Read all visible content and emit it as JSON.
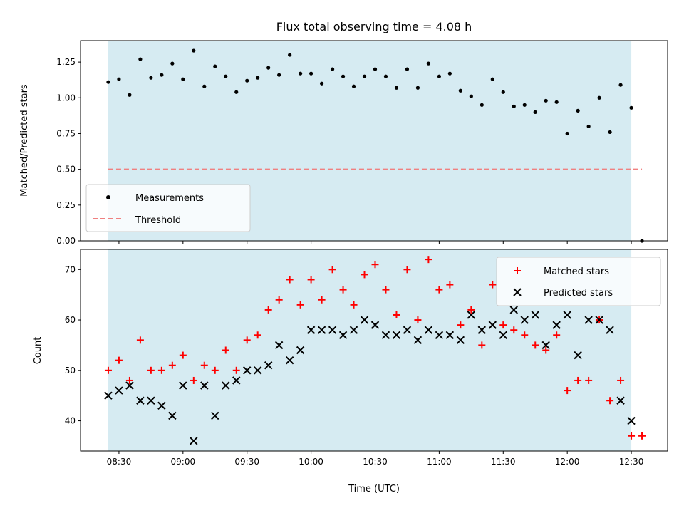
{
  "title": "Flux total observing time = 4.08 h",
  "colors": {
    "shade": "#add8e6",
    "measurement": "#000000",
    "threshold": "#f08080",
    "matched": "#ff0000",
    "predicted": "#000000"
  },
  "chart_data": [
    {
      "type": "scatter",
      "ylabel": "Matched/Predicted stars",
      "ylim": [
        0.0,
        1.4
      ],
      "yticks": [
        "0.00",
        "0.25",
        "0.50",
        "0.75",
        "1.00",
        "1.25"
      ],
      "yticks_values": [
        0.0,
        0.25,
        0.5,
        0.75,
        1.0,
        1.25
      ],
      "observing_window": [
        "08:25",
        "12:30"
      ],
      "legend": {
        "placement": "lower left",
        "entries": [
          "Measurements",
          "Threshold"
        ]
      },
      "threshold": {
        "value": 0.5,
        "x_range": [
          "08:25",
          "12:35"
        ]
      },
      "series": [
        {
          "name": "Measurements",
          "marker": "dot",
          "x": [
            "08:25",
            "08:30",
            "08:35",
            "08:40",
            "08:45",
            "08:50",
            "08:55",
            "09:00",
            "09:05",
            "09:10",
            "09:15",
            "09:20",
            "09:25",
            "09:30",
            "09:35",
            "09:40",
            "09:45",
            "09:50",
            "09:55",
            "10:00",
            "10:05",
            "10:10",
            "10:15",
            "10:20",
            "10:25",
            "10:30",
            "10:35",
            "10:40",
            "10:45",
            "10:50",
            "10:55",
            "11:00",
            "11:05",
            "11:10",
            "11:15",
            "11:20",
            "11:25",
            "11:30",
            "11:35",
            "11:40",
            "11:45",
            "11:50",
            "11:55",
            "12:00",
            "12:05",
            "12:10",
            "12:15",
            "12:20",
            "12:25",
            "12:30",
            "12:35"
          ],
          "y": [
            1.11,
            1.13,
            1.02,
            1.27,
            1.14,
            1.16,
            1.24,
            1.13,
            1.33,
            1.08,
            1.22,
            1.15,
            1.04,
            1.12,
            1.14,
            1.21,
            1.16,
            1.3,
            1.17,
            1.17,
            1.1,
            1.2,
            1.15,
            1.08,
            1.15,
            1.2,
            1.15,
            1.07,
            1.2,
            1.07,
            1.24,
            1.15,
            1.17,
            1.05,
            1.01,
            0.95,
            1.13,
            1.04,
            0.94,
            0.95,
            0.9,
            0.98,
            0.97,
            0.75,
            0.91,
            0.8,
            1.0,
            0.76,
            1.09,
            0.93,
            0.0
          ]
        }
      ]
    },
    {
      "type": "scatter",
      "xlabel": "Time (UTC)",
      "ylabel": "Count",
      "ylim": [
        34,
        74
      ],
      "xlim": [
        "08:12",
        "12:47"
      ],
      "yticks": [
        "40",
        "50",
        "60",
        "70"
      ],
      "yticks_values": [
        40,
        50,
        60,
        70
      ],
      "xticks": [
        "08:30",
        "09:00",
        "09:30",
        "10:00",
        "10:30",
        "11:00",
        "11:30",
        "12:00",
        "12:30"
      ],
      "observing_window": [
        "08:25",
        "12:30"
      ],
      "legend": {
        "placement": "upper right",
        "entries": [
          "Matched stars",
          "Predicted stars"
        ]
      },
      "series": [
        {
          "name": "Matched stars",
          "marker": "plus",
          "x": [
            "08:25",
            "08:30",
            "08:35",
            "08:40",
            "08:45",
            "08:50",
            "08:55",
            "09:00",
            "09:05",
            "09:10",
            "09:15",
            "09:20",
            "09:25",
            "09:30",
            "09:35",
            "09:40",
            "09:45",
            "09:50",
            "09:55",
            "10:00",
            "10:05",
            "10:10",
            "10:15",
            "10:20",
            "10:25",
            "10:30",
            "10:35",
            "10:40",
            "10:45",
            "10:50",
            "10:55",
            "11:00",
            "11:05",
            "11:10",
            "11:15",
            "11:20",
            "11:25",
            "11:30",
            "11:35",
            "11:40",
            "11:45",
            "11:50",
            "11:55",
            "12:00",
            "12:05",
            "12:10",
            "12:15",
            "12:20",
            "12:25",
            "12:30",
            "12:35"
          ],
          "y": [
            50,
            52,
            48,
            56,
            50,
            50,
            51,
            53,
            48,
            51,
            50,
            54,
            50,
            56,
            57,
            62,
            64,
            68,
            63,
            68,
            64,
            70,
            66,
            63,
            69,
            71,
            66,
            61,
            70,
            60,
            72,
            66,
            67,
            59,
            62,
            55,
            67,
            59,
            58,
            57,
            55,
            54,
            57,
            46,
            48,
            48,
            60,
            44,
            48,
            37,
            37
          ]
        },
        {
          "name": "Predicted stars",
          "marker": "x",
          "x": [
            "08:25",
            "08:30",
            "08:35",
            "08:40",
            "08:45",
            "08:50",
            "08:55",
            "09:00",
            "09:05",
            "09:10",
            "09:15",
            "09:20",
            "09:25",
            "09:30",
            "09:35",
            "09:40",
            "09:45",
            "09:50",
            "09:55",
            "10:00",
            "10:05",
            "10:10",
            "10:15",
            "10:20",
            "10:25",
            "10:30",
            "10:35",
            "10:40",
            "10:45",
            "10:50",
            "10:55",
            "11:00",
            "11:05",
            "11:10",
            "11:15",
            "11:20",
            "11:25",
            "11:30",
            "11:35",
            "11:40",
            "11:45",
            "11:50",
            "11:55",
            "12:00",
            "12:05",
            "12:10",
            "12:15",
            "12:20",
            "12:25",
            "12:30"
          ],
          "y": [
            45,
            46,
            47,
            44,
            44,
            43,
            41,
            47,
            36,
            47,
            41,
            47,
            48,
            50,
            50,
            51,
            55,
            52,
            54,
            58,
            58,
            58,
            57,
            58,
            60,
            59,
            57,
            57,
            58,
            56,
            58,
            57,
            57,
            56,
            61,
            58,
            59,
            57,
            62,
            60,
            61,
            55,
            59,
            61,
            53,
            60,
            60,
            58,
            44,
            40
          ]
        }
      ]
    }
  ]
}
